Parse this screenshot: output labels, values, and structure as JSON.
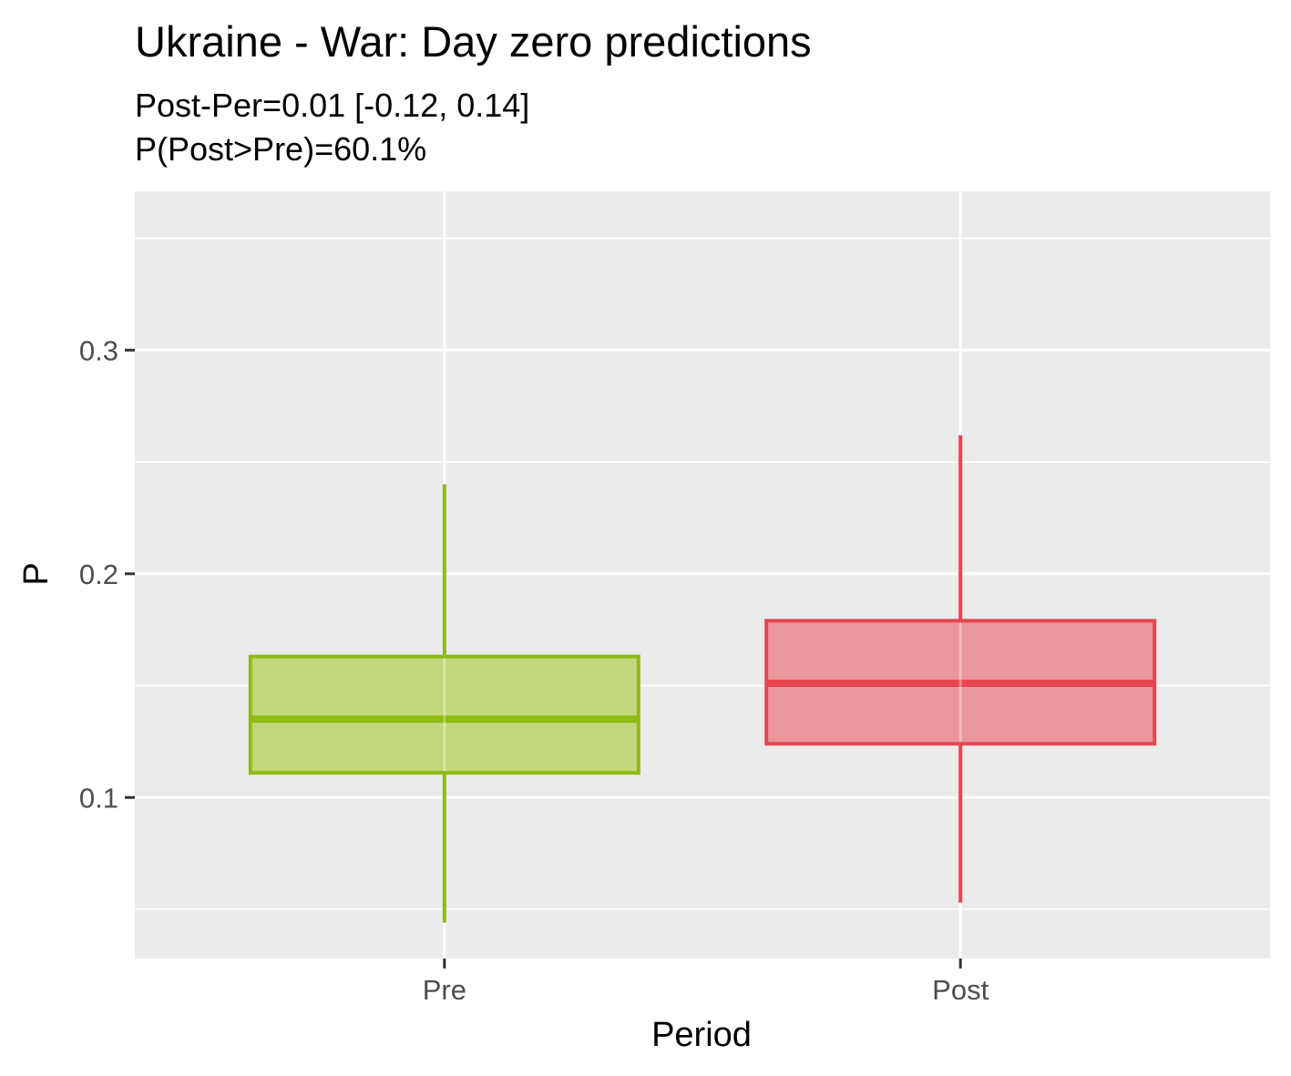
{
  "chart_data": {
    "type": "boxplot",
    "title": "Ukraine - War: Day zero predictions",
    "subtitle_lines": [
      "Post-Per=0.01 [-0.12, 0.14]",
      "P(Post>Pre)=60.1%"
    ],
    "xlabel": "Period",
    "ylabel": "P",
    "categories": [
      "Pre",
      "Post"
    ],
    "ylim": [
      0.028,
      0.371
    ],
    "y_major_ticks": [
      0.1,
      0.2,
      0.3
    ],
    "y_tick_labels": [
      "0.1",
      "0.2",
      "0.3"
    ],
    "y_minor_ticks": [
      0.05,
      0.15,
      0.25,
      0.35
    ],
    "grid": true,
    "background": "#ebebeb",
    "series": [
      {
        "category": "Pre",
        "whisker_low": 0.044,
        "q1": 0.111,
        "median": 0.135,
        "q3": 0.163,
        "whisker_high": 0.24,
        "color": "#8fba13",
        "fill": "#c3d77d"
      },
      {
        "category": "Post",
        "whisker_low": 0.053,
        "q1": 0.124,
        "median": 0.151,
        "q3": 0.179,
        "whisker_high": 0.262,
        "color": "#e64550",
        "fill": "#e9979b"
      }
    ]
  }
}
